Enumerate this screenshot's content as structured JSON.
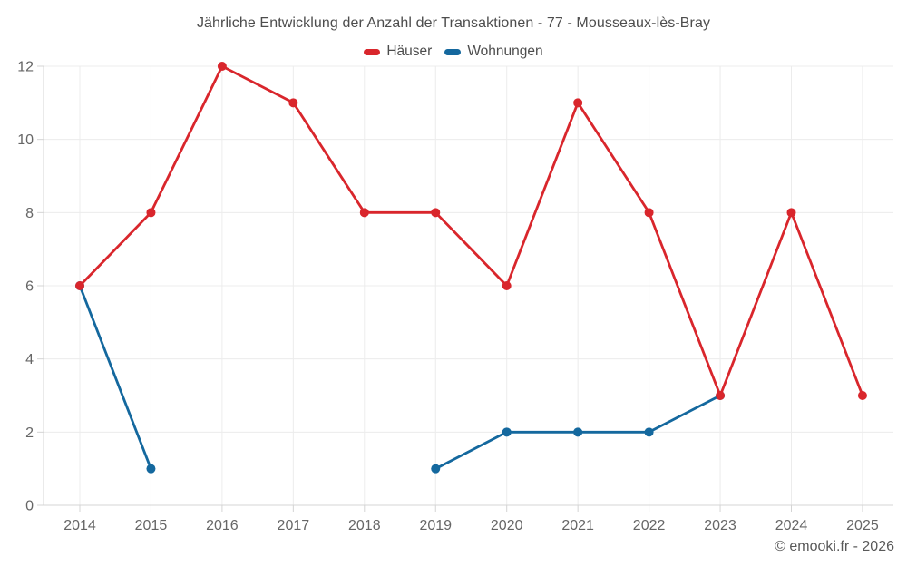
{
  "chart_data": {
    "type": "line",
    "title": "Jährliche Entwicklung der Anzahl der Transaktionen - 77 - Mousseaux-lès-Bray",
    "categories": [
      "2014",
      "2015",
      "2016",
      "2017",
      "2018",
      "2019",
      "2020",
      "2021",
      "2022",
      "2023",
      "2024",
      "2025"
    ],
    "series": [
      {
        "name": "Häuser",
        "color": "#d9262c",
        "values": [
          6,
          8,
          12,
          11,
          8,
          8,
          6,
          11,
          8,
          3,
          8,
          3
        ]
      },
      {
        "name": "Wohnungen",
        "color": "#14689e",
        "values": [
          6,
          1,
          null,
          null,
          null,
          1,
          2,
          2,
          2,
          3,
          null,
          null
        ]
      }
    ],
    "xlabel": "",
    "ylabel": "",
    "ylim": [
      0,
      12
    ],
    "yticks": [
      0,
      2,
      4,
      6,
      8,
      10,
      12
    ],
    "grid": true,
    "legend_position": "top",
    "footer": "© emooki.fr - 2026"
  },
  "colors": {
    "grid": "#ececec",
    "axis": "#d4d4d4",
    "tick": "#d4d4d4",
    "axis_text": "#666666",
    "title_text": "#4d4d4d",
    "footer_text": "#595959",
    "background": "#ffffff"
  }
}
